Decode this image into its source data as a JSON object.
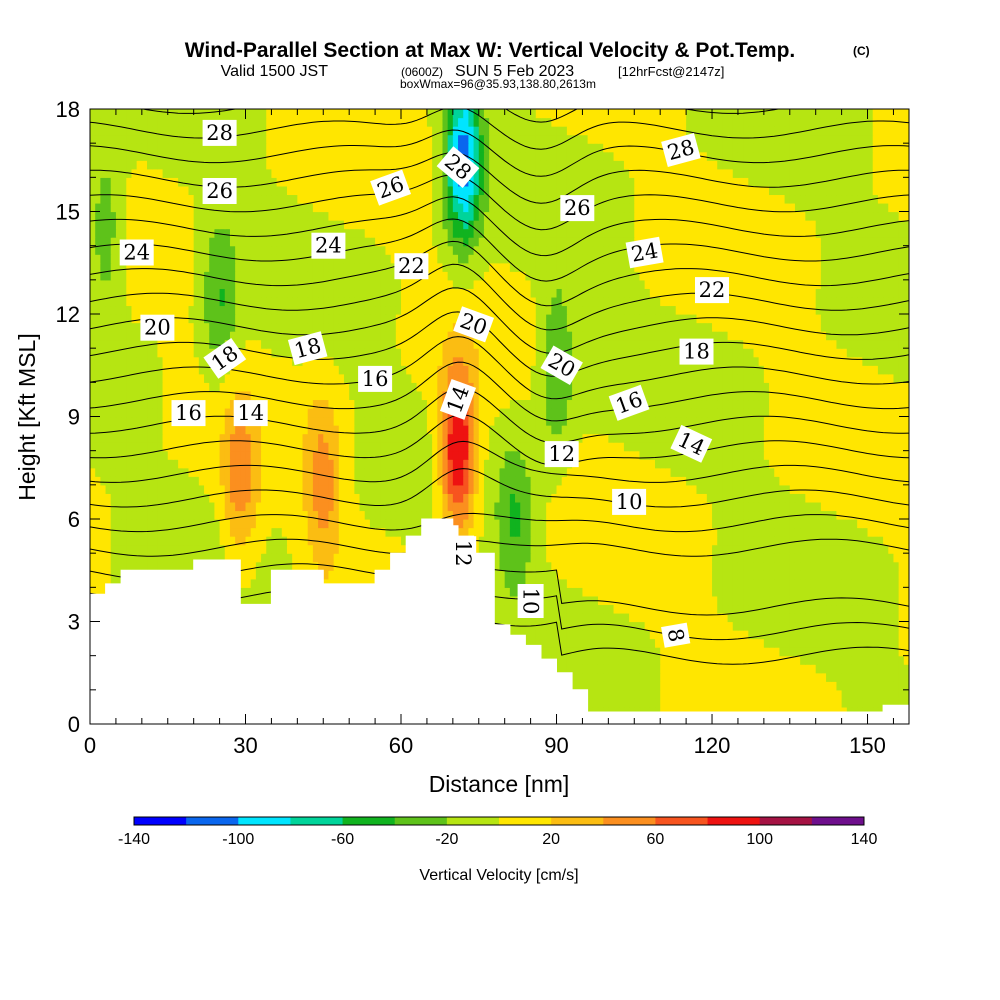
{
  "header": {
    "title": "Wind-Parallel Section at Max W: Vertical Velocity & Pot.Temp.",
    "copyright": "(C)",
    "valid_prefix": "Valid 1500 JST",
    "valid_utc": "(0600Z)",
    "valid_date": "SUN 5 Feb 2023",
    "valid_fcst": "[12hrFcst@2147z]",
    "box_info": "boxWmax=96@35.93,138.80,2613m"
  },
  "colors": {
    "bins": [
      "#0000ff",
      "#0a66ee",
      "#00e5ff",
      "#00d49a",
      "#10b31f",
      "#5ec21a",
      "#b6e512",
      "#ffe600",
      "#fbbd12",
      "#fb8f1f",
      "#f7541f",
      "#ee1211",
      "#a51243",
      "#6e0f8c"
    ],
    "terrain": "#ffffff",
    "contour": "#000000"
  },
  "chart_data": {
    "type": "heatmap",
    "xlabel": "Distance [nm]",
    "ylabel": "Height [Kft MSL]",
    "xlim": [
      0,
      158
    ],
    "ylim": [
      0,
      18
    ],
    "xticks": [
      0,
      30,
      60,
      90,
      120,
      150
    ],
    "yticks": [
      0,
      3,
      6,
      9,
      12,
      15,
      18
    ],
    "colorbar": {
      "label": "Vertical Velocity [cm/s]",
      "levels": [
        -140,
        -120,
        -100,
        -80,
        -60,
        -40,
        -20,
        0,
        20,
        40,
        60,
        80,
        100,
        120,
        140
      ],
      "tick_labels": [
        "-140",
        "-100",
        "-60",
        "-20",
        "20",
        "60",
        "100",
        "140"
      ]
    },
    "terrain_profile": [
      [
        0,
        3.8
      ],
      [
        3,
        3.8
      ],
      [
        3,
        4.1
      ],
      [
        6,
        4.1
      ],
      [
        6,
        4.5
      ],
      [
        20,
        4.5
      ],
      [
        20,
        4.8
      ],
      [
        29,
        4.8
      ],
      [
        29,
        3.5
      ],
      [
        35,
        3.5
      ],
      [
        35,
        4.5
      ],
      [
        45,
        4.5
      ],
      [
        45,
        4.1
      ],
      [
        55,
        4.1
      ],
      [
        55,
        4.5
      ],
      [
        58,
        4.5
      ],
      [
        58,
        5.0
      ],
      [
        61,
        5.0
      ],
      [
        61,
        5.5
      ],
      [
        64,
        5.5
      ],
      [
        64,
        6.0
      ],
      [
        70,
        6.0
      ],
      [
        70,
        5.8
      ],
      [
        71,
        5.8
      ],
      [
        71,
        5.5
      ],
      [
        74,
        5.5
      ],
      [
        74,
        5.0
      ],
      [
        78,
        5.0
      ],
      [
        78,
        2.9
      ],
      [
        81,
        2.9
      ],
      [
        81,
        2.6
      ],
      [
        84,
        2.6
      ],
      [
        84,
        2.3
      ],
      [
        87,
        2.3
      ],
      [
        87,
        1.9
      ],
      [
        90,
        1.9
      ],
      [
        90,
        1.5
      ],
      [
        93,
        1.5
      ],
      [
        93,
        1.0
      ],
      [
        96,
        1.0
      ],
      [
        96,
        0.35
      ],
      [
        153,
        0.35
      ],
      [
        153,
        0.55
      ],
      [
        158,
        0.55
      ]
    ],
    "vertical_velocity_features": [
      {
        "x": 71,
        "z": 8.0,
        "w": 110,
        "note": "max updraft"
      },
      {
        "x": 72,
        "z": 16.5,
        "w": -110,
        "note": "downdraft aloft"
      },
      {
        "x": 90,
        "z": 10.5,
        "w": -45
      },
      {
        "x": 29,
        "z": 7.0,
        "w": 50
      },
      {
        "x": 45,
        "z": 7.0,
        "w": 50
      },
      {
        "x": 82,
        "z": 6.0,
        "w": -40
      },
      {
        "x": 3,
        "z": 14.5,
        "w": -40
      },
      {
        "x": 25,
        "z": 12.5,
        "w": -40
      }
    ],
    "theta_contour_labels": [
      {
        "text": "28",
        "x": 25,
        "z": 17.3,
        "rot": 0
      },
      {
        "text": "26",
        "x": 25,
        "z": 15.6,
        "rot": 0
      },
      {
        "text": "24",
        "x": 9,
        "z": 13.8,
        "rot": 0
      },
      {
        "text": "20",
        "x": 13,
        "z": 11.6,
        "rot": 0
      },
      {
        "text": "18",
        "x": 26,
        "z": 10.7,
        "rot": -35
      },
      {
        "text": "16",
        "x": 19,
        "z": 9.1,
        "rot": 0
      },
      {
        "text": "14",
        "x": 31,
        "z": 9.1,
        "rot": 0
      },
      {
        "text": "24",
        "x": 46,
        "z": 14.0,
        "rot": 0
      },
      {
        "text": "18",
        "x": 42,
        "z": 11.0,
        "rot": -15
      },
      {
        "text": "16",
        "x": 55,
        "z": 10.1,
        "rot": 0
      },
      {
        "text": "26",
        "x": 58,
        "z": 15.7,
        "rot": -20
      },
      {
        "text": "22",
        "x": 62,
        "z": 13.4,
        "rot": 0
      },
      {
        "text": "28",
        "x": 71,
        "z": 16.3,
        "rot": 40
      },
      {
        "text": "20",
        "x": 74,
        "z": 11.7,
        "rot": 20
      },
      {
        "text": "14",
        "x": 71,
        "z": 9.5,
        "rot": -70
      },
      {
        "text": "12",
        "x": 72,
        "z": 5.0,
        "rot": 90
      },
      {
        "text": "10",
        "x": 85,
        "z": 3.6,
        "rot": 90
      },
      {
        "text": "26",
        "x": 94,
        "z": 15.1,
        "rot": 0
      },
      {
        "text": "20",
        "x": 91,
        "z": 10.5,
        "rot": 30
      },
      {
        "text": "12",
        "x": 91,
        "z": 7.9,
        "rot": 0
      },
      {
        "text": "16",
        "x": 104,
        "z": 9.4,
        "rot": -20
      },
      {
        "text": "10",
        "x": 104,
        "z": 6.5,
        "rot": 0
      },
      {
        "text": "28",
        "x": 114,
        "z": 16.8,
        "rot": -15
      },
      {
        "text": "24",
        "x": 107,
        "z": 13.8,
        "rot": -10
      },
      {
        "text": "22",
        "x": 120,
        "z": 12.7,
        "rot": 0
      },
      {
        "text": "18",
        "x": 117,
        "z": 10.9,
        "rot": 0
      },
      {
        "text": "14",
        "x": 116,
        "z": 8.2,
        "rot": 25
      },
      {
        "text": "8",
        "x": 113,
        "z": 2.6,
        "rot": 80
      }
    ]
  }
}
